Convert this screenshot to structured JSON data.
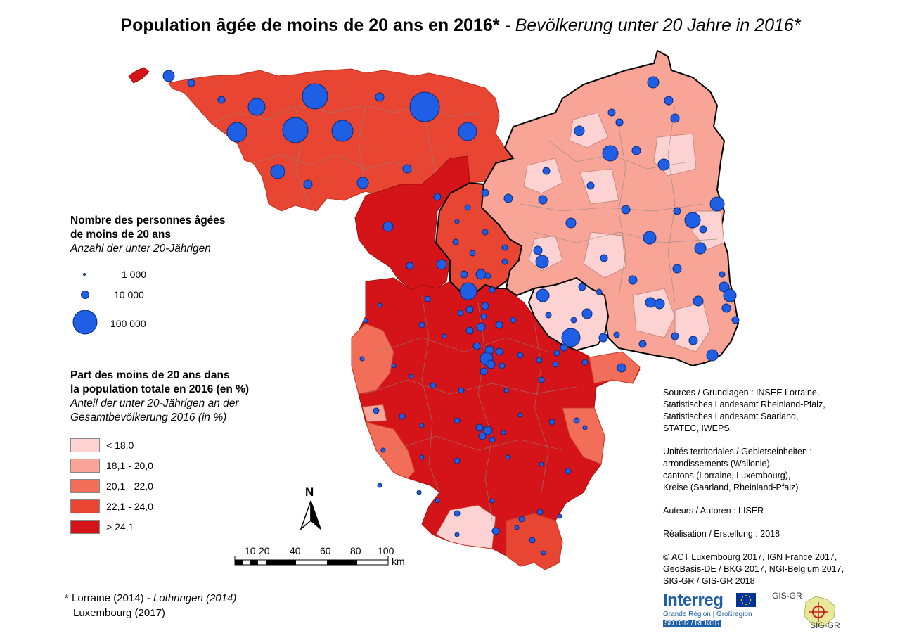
{
  "title": {
    "fr": "Population âgée de moins de 20 ans en 2016*",
    "sep": " - ",
    "de": "Bevölkerung unter 20 Jahre in 2016*"
  },
  "legend_size": {
    "title_fr_1": "Nombre des personnes âgées",
    "title_fr_2": "de moins de 20 ans",
    "title_de": "Anzahl der unter 20-Jährigen",
    "items": [
      "1 000",
      "10 000",
      "100 000"
    ]
  },
  "legend_class": {
    "title_fr_1": "Part des moins de 20 ans dans",
    "title_fr_2": "la population totale en 2016 (en %)",
    "title_de_1": "Anteil der unter 20-Jährigen an der",
    "title_de_2": "Gesamtbevölkerung 2016 (in %)",
    "items": [
      {
        "label": "< 18,0",
        "color": "#fcd2d2"
      },
      {
        "label": "18,1 - 20,0",
        "color": "#f8a496"
      },
      {
        "label": "20,1 - 22,0",
        "color": "#f26e58"
      },
      {
        "label": "22,1 - 24,0",
        "color": "#e84632"
      },
      {
        "label": "> 24,1",
        "color": "#d41418"
      }
    ]
  },
  "north_label": "N",
  "scalebar": {
    "labels": [
      "10",
      "20",
      "40",
      "60",
      "80",
      "100"
    ],
    "unit": "km"
  },
  "sources": {
    "s1": "Sources / Grundlagen : INSEE Lorraine,",
    "s2": "Statistisches Landesamt Rheinland-Pfalz,",
    "s3": "Statistisches Landesamt Saarland,",
    "s4": "STATEC, IWEPS.",
    "u1": "Unités territoriales / Gebietseinheiten :",
    "u2": "arrondissements (Wallonie),",
    "u3": "cantons (Lorraine, Luxembourg),",
    "u4": "Kreise (Saarland, Rheinland-Pfalz)",
    "auteurs": "Auteurs / Autoren : LISER",
    "realisation": "Réalisation / Erstellung : 2018",
    "c1": "© ACT Luxembourg 2017, IGN France 2017,",
    "c2": "GeoBasis-DE / BKG 2017, NGI-Belgium 2017,",
    "c3": "SIG-GR / GIS-GR 2018"
  },
  "note": {
    "line1_fr": "* Lorraine (2014)",
    "line1_sep": " - ",
    "line1_de": "Lothringen (2014)",
    "line2": "Luxembourg (2017)"
  },
  "logos": {
    "interreg_word": "Interreg",
    "interreg_sub1": "Grande Région | Großregion",
    "interreg_sub2": "SDTGR / REKGR",
    "gis_top": "GIS-GR",
    "gis_bottom": "SIG-GR"
  },
  "colors": {
    "circle_fill": "#1f5fe6",
    "circle_stroke": "#0a2a7a",
    "border": "#000000"
  }
}
